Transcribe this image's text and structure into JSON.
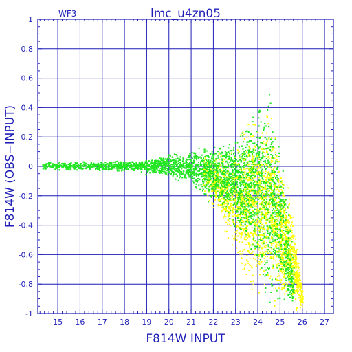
{
  "chart_data": {
    "type": "scatter",
    "title": "lmc_u4zn05",
    "corner_label": "WF3",
    "xlabel": "F814W  INPUT",
    "ylabel": "F814W  (OBS−INPUT)",
    "xlim": [
      14.1,
      27.4
    ],
    "ylim": [
      -1,
      1
    ],
    "x_ticks": [
      "15",
      "16",
      "17",
      "18",
      "19",
      "20",
      "21",
      "22",
      "23",
      "24",
      "25",
      "26",
      "27"
    ],
    "y_ticks": [
      "-1",
      "-0.8",
      "-0.6",
      "-0.4",
      "-0.2",
      "0",
      "0.2",
      "0.4",
      "0.6",
      "0.8",
      "1"
    ],
    "grid": true,
    "colors": {
      "axis": "#1f1fb8",
      "series_green": "#22e622",
      "series_yellow": "#ffff00"
    },
    "series": [
      {
        "color": "green",
        "envelope": [
          {
            "x": 14.3,
            "y_low": -0.03,
            "y_high": 0.04
          },
          {
            "x": 16.0,
            "y_low": -0.03,
            "y_high": 0.04
          },
          {
            "x": 18.0,
            "y_low": -0.04,
            "y_high": 0.05
          },
          {
            "x": 20.0,
            "y_low": -0.08,
            "y_high": 0.1
          },
          {
            "x": 21.0,
            "y_low": -0.15,
            "y_high": 0.15
          },
          {
            "x": 22.0,
            "y_low": -0.28,
            "y_high": 0.18
          },
          {
            "x": 23.0,
            "y_low": -0.48,
            "y_high": 0.25
          },
          {
            "x": 24.0,
            "y_low": -0.8,
            "y_high": 0.5
          },
          {
            "x": 24.4,
            "y_low": -1.0,
            "y_high": 0.62
          },
          {
            "x": 25.0,
            "y_low": -1.0,
            "y_high": 0.25
          },
          {
            "x": 25.6,
            "y_low": -1.0,
            "y_high": -0.6
          }
        ]
      },
      {
        "color": "yellow",
        "envelope": [
          {
            "x": 21.5,
            "y_low": -0.2,
            "y_high": 0.1
          },
          {
            "x": 22.5,
            "y_low": -0.5,
            "y_high": 0.15
          },
          {
            "x": 23.5,
            "y_low": -0.9,
            "y_high": 0.35
          },
          {
            "x": 24.5,
            "y_low": -1.0,
            "y_high": 0.55
          },
          {
            "x": 25.5,
            "y_low": -1.0,
            "y_high": -0.2
          },
          {
            "x": 26.0,
            "y_low": -1.0,
            "y_high": -0.8
          }
        ]
      }
    ]
  }
}
